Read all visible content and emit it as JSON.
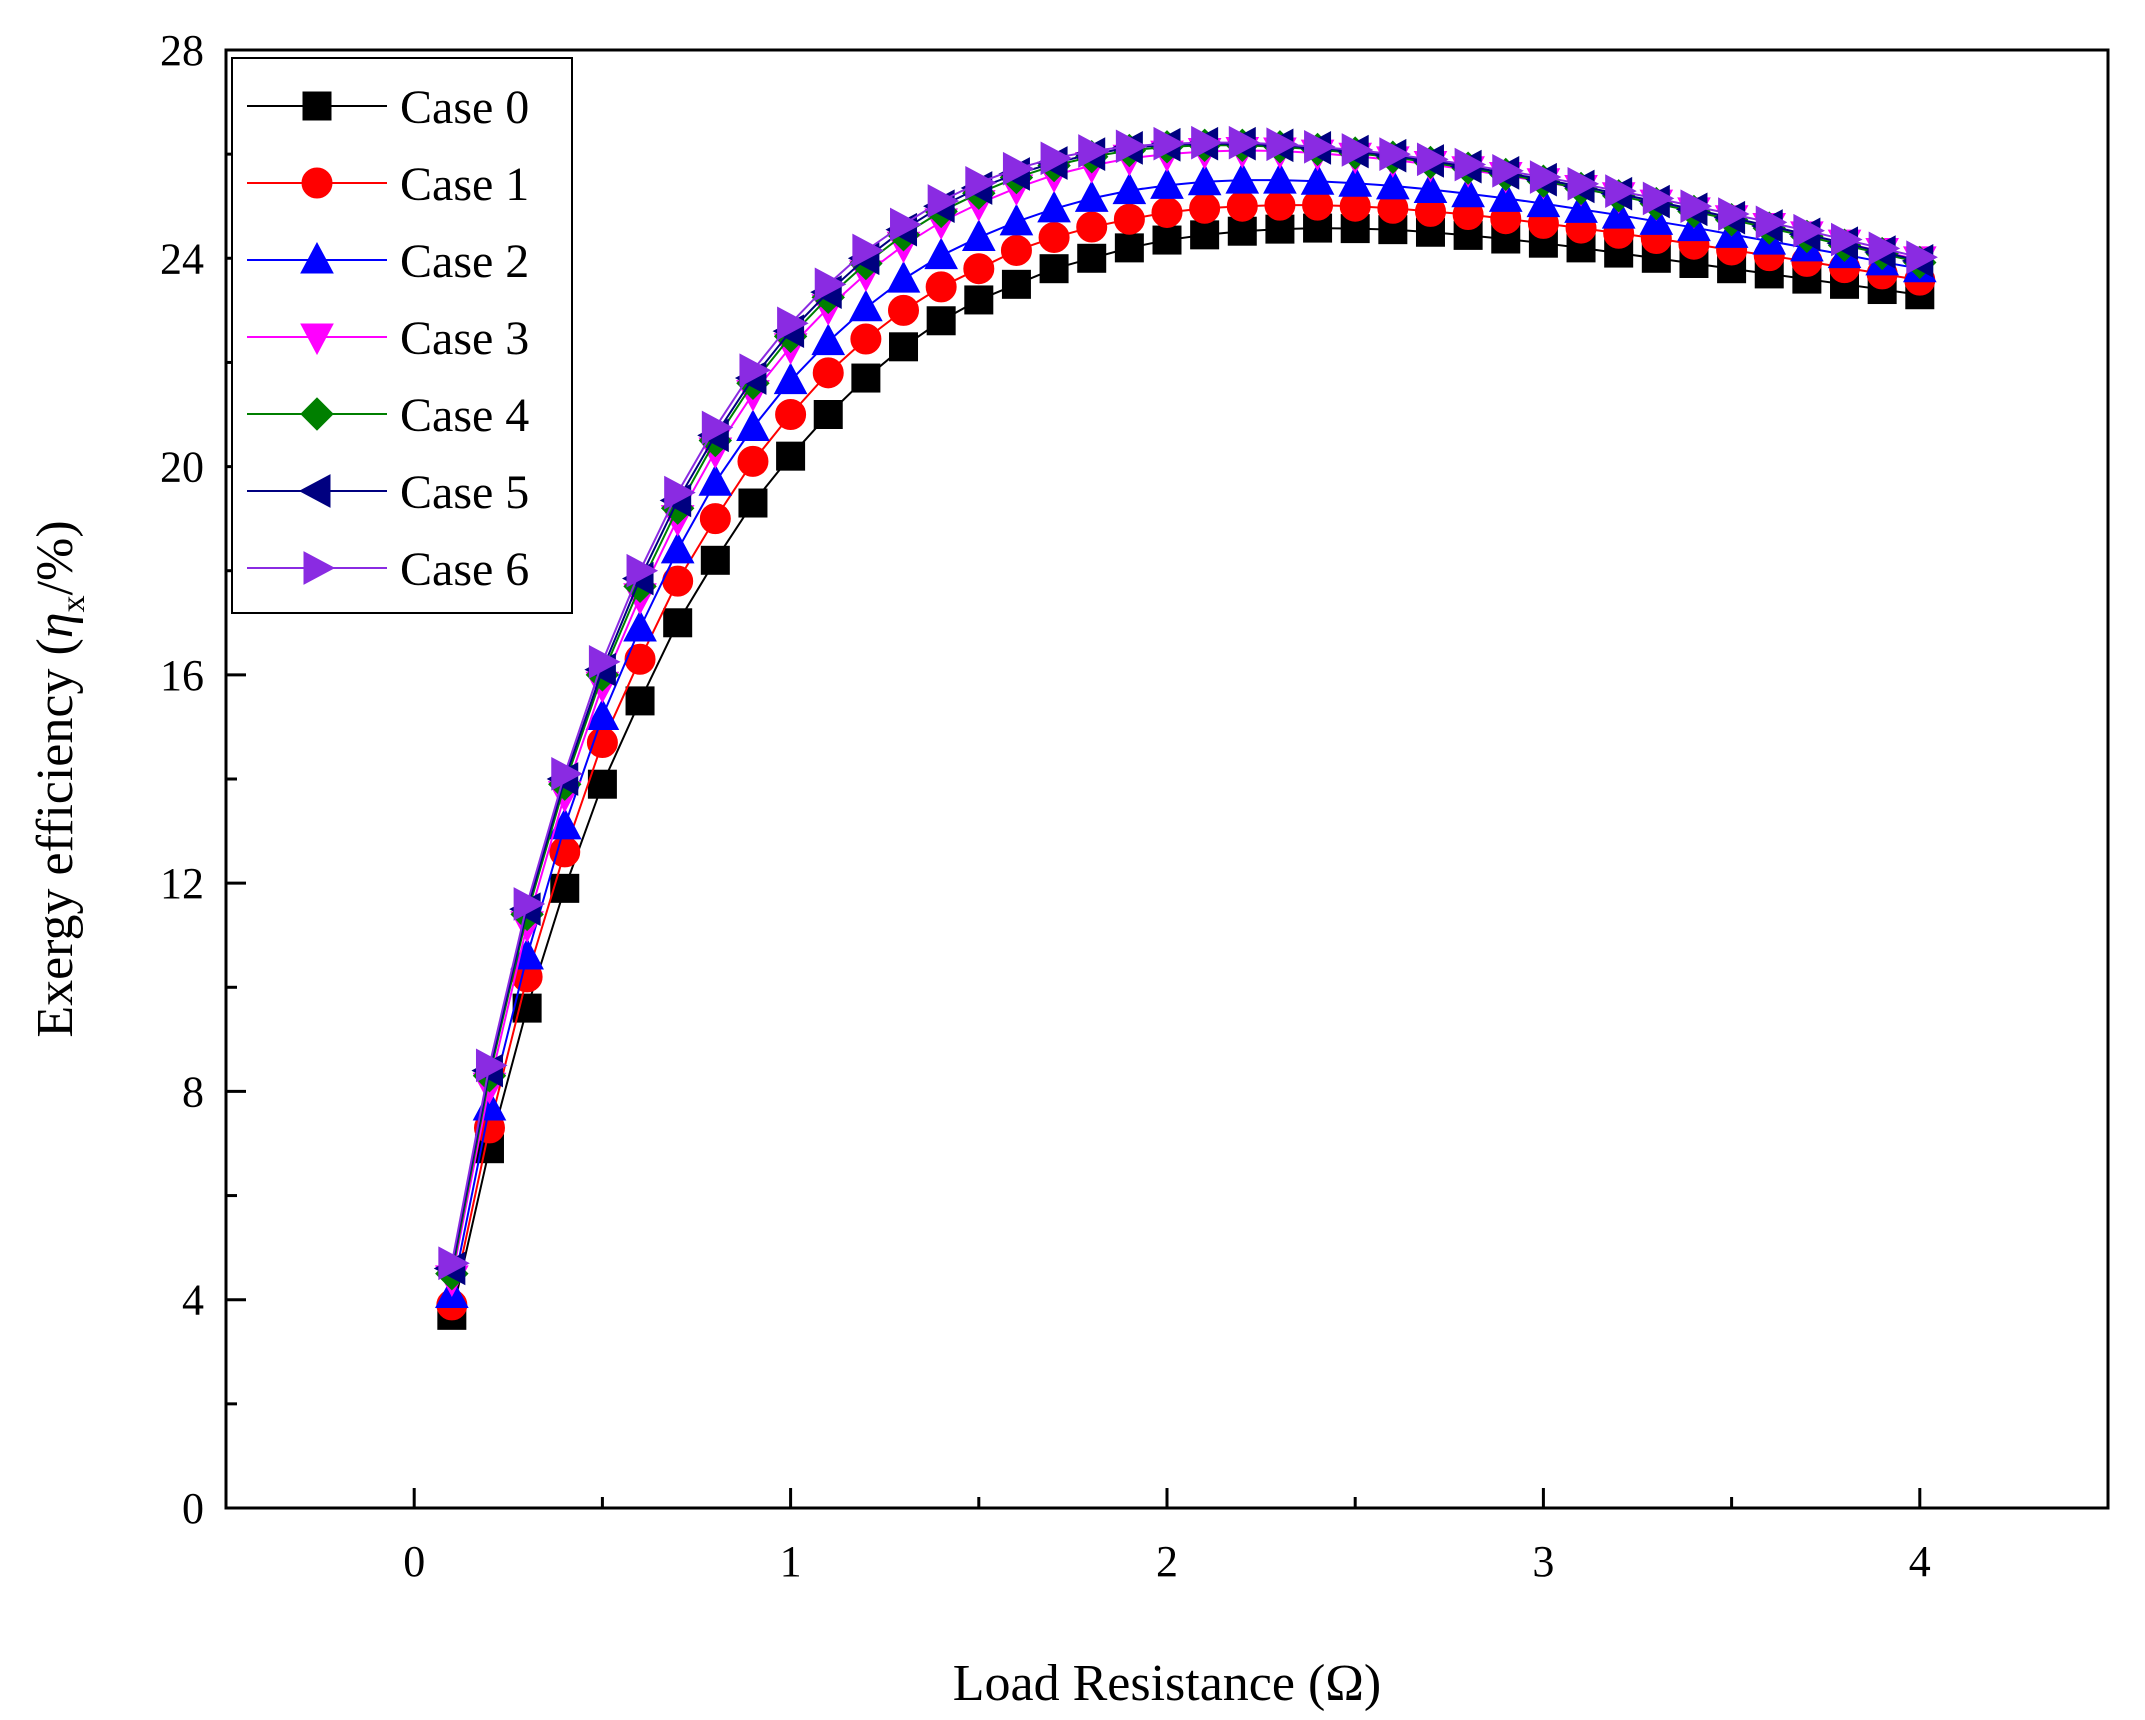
{
  "chart_data": {
    "type": "line",
    "xlabel": "Load Resistance (Ω)",
    "ylabel_main": "Exergy efficiency (",
    "ylabel_symbol": "η",
    "ylabel_subscript": "x",
    "ylabel_unit": "/%)",
    "xlim": [
      -0.5,
      4.5
    ],
    "ylim": [
      0,
      28
    ],
    "xticks": [
      0,
      1,
      2,
      3,
      4
    ],
    "xtick_labels": [
      "0",
      "1",
      "2",
      "3",
      "4"
    ],
    "yticks": [
      0,
      4,
      8,
      12,
      16,
      20,
      24,
      28
    ],
    "ytick_labels": [
      "0",
      "4",
      "8",
      "12",
      "16",
      "20",
      "24",
      "28"
    ],
    "grid": false,
    "legend_position": "top-left",
    "x": [
      0.1,
      0.2,
      0.3,
      0.4,
      0.5,
      0.6,
      0.7,
      0.8,
      0.9,
      1.0,
      1.1,
      1.2,
      1.3,
      1.4,
      1.5,
      1.6,
      1.7,
      1.8,
      1.9,
      2.0,
      2.1,
      2.2,
      2.3,
      2.4,
      2.5,
      2.6,
      2.7,
      2.8,
      2.9,
      3.0,
      3.1,
      3.2,
      3.3,
      3.4,
      3.5,
      3.6,
      3.7,
      3.8,
      3.9,
      4.0
    ],
    "series": [
      {
        "name": "Case 0",
        "color": "#000000",
        "marker": "square",
        "values": [
          3.7,
          6.9,
          9.6,
          11.9,
          13.9,
          15.5,
          17.0,
          18.2,
          19.3,
          20.2,
          21.0,
          21.7,
          22.3,
          22.8,
          23.2,
          23.5,
          23.8,
          24.0,
          24.2,
          24.35,
          24.45,
          24.52,
          24.56,
          24.58,
          24.57,
          24.55,
          24.5,
          24.44,
          24.37,
          24.29,
          24.2,
          24.1,
          24.0,
          23.9,
          23.8,
          23.7,
          23.6,
          23.5,
          23.4,
          23.3
        ]
      },
      {
        "name": "Case 1",
        "color": "#ff0000",
        "marker": "circle",
        "values": [
          3.9,
          7.3,
          10.2,
          12.6,
          14.7,
          16.3,
          17.8,
          19.0,
          20.1,
          21.0,
          21.8,
          22.45,
          23.0,
          23.45,
          23.8,
          24.15,
          24.4,
          24.6,
          24.75,
          24.88,
          24.96,
          25.0,
          25.02,
          25.02,
          25.0,
          24.96,
          24.9,
          24.84,
          24.76,
          24.67,
          24.58,
          24.48,
          24.38,
          24.27,
          24.16,
          24.05,
          23.94,
          23.82,
          23.7,
          23.58
        ]
      },
      {
        "name": "Case 2",
        "color": "#0000ff",
        "marker": "triangle-up",
        "values": [
          4.1,
          7.7,
          10.6,
          13.1,
          15.2,
          16.9,
          18.4,
          19.7,
          20.75,
          21.65,
          22.4,
          23.05,
          23.6,
          24.05,
          24.4,
          24.7,
          24.95,
          25.15,
          25.3,
          25.4,
          25.47,
          25.5,
          25.5,
          25.48,
          25.44,
          25.39,
          25.32,
          25.24,
          25.15,
          25.05,
          24.94,
          24.83,
          24.71,
          24.59,
          24.46,
          24.33,
          24.2,
          24.07,
          23.93,
          23.8
        ]
      },
      {
        "name": "Case 3",
        "color": "#ff00ff",
        "marker": "triangle-down",
        "values": [
          4.4,
          8.1,
          11.2,
          13.7,
          15.8,
          17.5,
          19.0,
          20.3,
          21.4,
          22.3,
          23.05,
          23.7,
          24.25,
          24.7,
          25.05,
          25.35,
          25.6,
          25.78,
          25.92,
          26.0,
          26.05,
          26.07,
          26.06,
          26.02,
          25.96,
          25.89,
          25.8,
          25.7,
          25.59,
          25.47,
          25.34,
          25.2,
          25.06,
          24.91,
          24.76,
          24.61,
          24.45,
          24.29,
          24.13,
          23.97
        ]
      },
      {
        "name": "Case 4",
        "color": "#007f00",
        "marker": "diamond",
        "values": [
          4.5,
          8.3,
          11.4,
          13.9,
          16.0,
          17.7,
          19.2,
          20.5,
          21.6,
          22.5,
          23.25,
          23.9,
          24.45,
          24.9,
          25.25,
          25.55,
          25.78,
          25.95,
          26.07,
          26.14,
          26.17,
          26.17,
          26.14,
          26.09,
          26.02,
          25.94,
          25.84,
          25.73,
          25.61,
          25.48,
          25.34,
          25.2,
          25.05,
          24.9,
          24.74,
          24.58,
          24.42,
          24.25,
          24.09,
          23.92
        ]
      },
      {
        "name": "Case 5",
        "color": "#000080",
        "marker": "triangle-left",
        "values": [
          4.6,
          8.4,
          11.5,
          14.0,
          16.1,
          17.85,
          19.35,
          20.6,
          21.7,
          22.6,
          23.35,
          24.0,
          24.55,
          25.0,
          25.35,
          25.62,
          25.83,
          26.0,
          26.12,
          26.18,
          26.2,
          26.2,
          26.17,
          26.12,
          26.05,
          25.97,
          25.87,
          25.76,
          25.64,
          25.51,
          25.38,
          25.24,
          25.09,
          24.94,
          24.78,
          24.62,
          24.46,
          24.29,
          24.12,
          23.95
        ]
      },
      {
        "name": "Case 6",
        "color": "#8a2be2",
        "marker": "triangle-right",
        "values": [
          4.7,
          8.5,
          11.6,
          14.1,
          16.25,
          18.0,
          19.5,
          20.75,
          21.85,
          22.75,
          23.5,
          24.15,
          24.65,
          25.1,
          25.45,
          25.72,
          25.92,
          26.06,
          26.15,
          26.2,
          26.22,
          26.22,
          26.19,
          26.14,
          26.08,
          26.0,
          25.9,
          25.8,
          25.68,
          25.56,
          25.43,
          25.29,
          25.15,
          25.0,
          24.85,
          24.69,
          24.53,
          24.36,
          24.19,
          24.02
        ]
      }
    ]
  }
}
